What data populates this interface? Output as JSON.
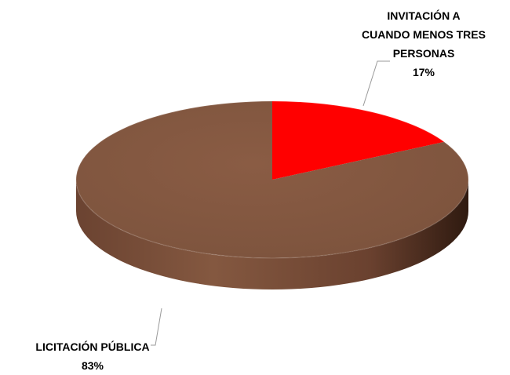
{
  "chart_data": {
    "type": "pie",
    "title": "",
    "categories": [
      "INVITACIÓN A CUANDO MENOS TRES PERSONAS",
      "LICITACIÓN PÚBLICA"
    ],
    "values": [
      17,
      83
    ],
    "unit": "%",
    "colors": [
      "#ff0000",
      "#845840"
    ],
    "labels": [
      {
        "name_lines": [
          "INVITACIÓN A",
          "CUANDO MENOS TRES",
          "PERSONAS"
        ],
        "value_text": "17%"
      },
      {
        "name_lines": [
          "LICITACIÓN PÚBLICA"
        ],
        "value_text": "83%"
      }
    ],
    "legend": "none",
    "style": "3d"
  }
}
